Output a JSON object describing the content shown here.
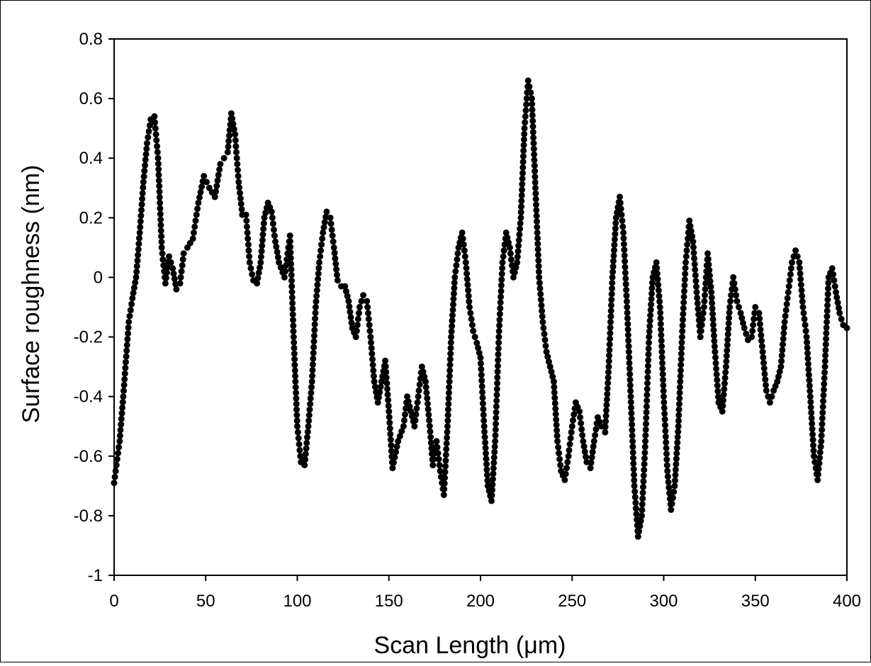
{
  "chart_data": {
    "type": "scatter",
    "title": "",
    "xlabel": "Scan Length (μm)",
    "ylabel": "Surface roughness (nm)",
    "xlim": [
      0,
      400
    ],
    "ylim": [
      -1,
      0.8
    ],
    "xticks": [
      "0",
      "50",
      "100",
      "150",
      "200",
      "250",
      "300",
      "350",
      "400"
    ],
    "yticks": [
      "0.8",
      "0.6",
      "0.4",
      "0.2",
      "0",
      "-0.2",
      "-0.4",
      "-0.6",
      "-0.8",
      "-1"
    ],
    "grid": false,
    "legend": "none",
    "marker_color": "#000000",
    "profile": [
      [
        0,
        -0.69
      ],
      [
        3,
        -0.55
      ],
      [
        5,
        -0.4
      ],
      [
        8,
        -0.15
      ],
      [
        10,
        -0.07
      ],
      [
        12,
        0.0
      ],
      [
        14,
        0.15
      ],
      [
        16,
        0.32
      ],
      [
        18,
        0.45
      ],
      [
        20,
        0.53
      ],
      [
        22,
        0.54
      ],
      [
        24,
        0.4
      ],
      [
        26,
        0.1
      ],
      [
        28,
        -0.02
      ],
      [
        30,
        0.07
      ],
      [
        32,
        0.03
      ],
      [
        34,
        -0.04
      ],
      [
        36,
        -0.02
      ],
      [
        38,
        0.08
      ],
      [
        40,
        0.1
      ],
      [
        43,
        0.13
      ],
      [
        46,
        0.25
      ],
      [
        49,
        0.34
      ],
      [
        52,
        0.3
      ],
      [
        55,
        0.27
      ],
      [
        58,
        0.38
      ],
      [
        62,
        0.42
      ],
      [
        64,
        0.55
      ],
      [
        66,
        0.48
      ],
      [
        68,
        0.32
      ],
      [
        70,
        0.21
      ],
      [
        72,
        0.21
      ],
      [
        74,
        0.05
      ],
      [
        76,
        -0.01
      ],
      [
        78,
        -0.02
      ],
      [
        80,
        0.05
      ],
      [
        82,
        0.2
      ],
      [
        84,
        0.25
      ],
      [
        86,
        0.22
      ],
      [
        88,
        0.12
      ],
      [
        90,
        0.05
      ],
      [
        93,
        0.0
      ],
      [
        96,
        0.14
      ],
      [
        98,
        -0.2
      ],
      [
        100,
        -0.5
      ],
      [
        102,
        -0.62
      ],
      [
        104,
        -0.63
      ],
      [
        106,
        -0.5
      ],
      [
        108,
        -0.35
      ],
      [
        110,
        -0.1
      ],
      [
        112,
        0.05
      ],
      [
        114,
        0.15
      ],
      [
        116,
        0.22
      ],
      [
        118,
        0.2
      ],
      [
        120,
        0.1
      ],
      [
        122,
        -0.01
      ],
      [
        124,
        -0.03
      ],
      [
        126,
        -0.03
      ],
      [
        128,
        -0.08
      ],
      [
        130,
        -0.17
      ],
      [
        132,
        -0.2
      ],
      [
        134,
        -0.1
      ],
      [
        136,
        -0.06
      ],
      [
        138,
        -0.08
      ],
      [
        140,
        -0.2
      ],
      [
        142,
        -0.35
      ],
      [
        144,
        -0.42
      ],
      [
        146,
        -0.35
      ],
      [
        148,
        -0.28
      ],
      [
        150,
        -0.45
      ],
      [
        152,
        -0.64
      ],
      [
        155,
        -0.55
      ],
      [
        158,
        -0.5
      ],
      [
        160,
        -0.4
      ],
      [
        162,
        -0.45
      ],
      [
        164,
        -0.5
      ],
      [
        166,
        -0.4
      ],
      [
        168,
        -0.3
      ],
      [
        170,
        -0.35
      ],
      [
        172,
        -0.48
      ],
      [
        174,
        -0.63
      ],
      [
        176,
        -0.55
      ],
      [
        178,
        -0.65
      ],
      [
        180,
        -0.73
      ],
      [
        182,
        -0.5
      ],
      [
        184,
        -0.2
      ],
      [
        186,
        0.0
      ],
      [
        188,
        0.1
      ],
      [
        190,
        0.15
      ],
      [
        192,
        0.05
      ],
      [
        194,
        -0.1
      ],
      [
        196,
        -0.18
      ],
      [
        198,
        -0.22
      ],
      [
        200,
        -0.27
      ],
      [
        202,
        -0.5
      ],
      [
        204,
        -0.7
      ],
      [
        206,
        -0.75
      ],
      [
        208,
        -0.55
      ],
      [
        210,
        -0.2
      ],
      [
        212,
        0.05
      ],
      [
        214,
        0.15
      ],
      [
        216,
        0.1
      ],
      [
        218,
        0.0
      ],
      [
        220,
        0.05
      ],
      [
        222,
        0.2
      ],
      [
        224,
        0.5
      ],
      [
        226,
        0.66
      ],
      [
        228,
        0.6
      ],
      [
        230,
        0.3
      ],
      [
        232,
        0.0
      ],
      [
        234,
        -0.15
      ],
      [
        236,
        -0.25
      ],
      [
        238,
        -0.3
      ],
      [
        240,
        -0.35
      ],
      [
        242,
        -0.55
      ],
      [
        244,
        -0.65
      ],
      [
        246,
        -0.68
      ],
      [
        248,
        -0.6
      ],
      [
        250,
        -0.5
      ],
      [
        252,
        -0.42
      ],
      [
        254,
        -0.45
      ],
      [
        256,
        -0.55
      ],
      [
        258,
        -0.62
      ],
      [
        260,
        -0.64
      ],
      [
        262,
        -0.55
      ],
      [
        264,
        -0.47
      ],
      [
        266,
        -0.5
      ],
      [
        268,
        -0.52
      ],
      [
        270,
        -0.3
      ],
      [
        272,
        0.0
      ],
      [
        274,
        0.2
      ],
      [
        276,
        0.27
      ],
      [
        278,
        0.15
      ],
      [
        280,
        -0.1
      ],
      [
        282,
        -0.4
      ],
      [
        284,
        -0.7
      ],
      [
        286,
        -0.87
      ],
      [
        288,
        -0.8
      ],
      [
        290,
        -0.55
      ],
      [
        292,
        -0.2
      ],
      [
        294,
        0.0
      ],
      [
        296,
        0.05
      ],
      [
        298,
        -0.1
      ],
      [
        300,
        -0.4
      ],
      [
        302,
        -0.65
      ],
      [
        304,
        -0.78
      ],
      [
        306,
        -0.7
      ],
      [
        308,
        -0.5
      ],
      [
        310,
        -0.2
      ],
      [
        312,
        0.05
      ],
      [
        314,
        0.19
      ],
      [
        316,
        0.12
      ],
      [
        318,
        -0.05
      ],
      [
        320,
        -0.2
      ],
      [
        322,
        -0.1
      ],
      [
        324,
        0.08
      ],
      [
        326,
        -0.05
      ],
      [
        328,
        -0.25
      ],
      [
        330,
        -0.42
      ],
      [
        332,
        -0.45
      ],
      [
        334,
        -0.3
      ],
      [
        336,
        -0.1
      ],
      [
        338,
        0.0
      ],
      [
        340,
        -0.08
      ],
      [
        342,
        -0.12
      ],
      [
        344,
        -0.17
      ],
      [
        346,
        -0.21
      ],
      [
        348,
        -0.2
      ],
      [
        350,
        -0.1
      ],
      [
        352,
        -0.12
      ],
      [
        354,
        -0.25
      ],
      [
        356,
        -0.38
      ],
      [
        358,
        -0.42
      ],
      [
        360,
        -0.38
      ],
      [
        362,
        -0.35
      ],
      [
        364,
        -0.3
      ],
      [
        366,
        -0.15
      ],
      [
        368,
        -0.05
      ],
      [
        370,
        0.05
      ],
      [
        372,
        0.09
      ],
      [
        374,
        0.05
      ],
      [
        376,
        -0.1
      ],
      [
        378,
        -0.2
      ],
      [
        380,
        -0.4
      ],
      [
        382,
        -0.6
      ],
      [
        384,
        -0.68
      ],
      [
        386,
        -0.55
      ],
      [
        388,
        -0.3
      ],
      [
        390,
        0.0
      ],
      [
        392,
        0.03
      ],
      [
        394,
        -0.05
      ],
      [
        396,
        -0.12
      ],
      [
        398,
        -0.16
      ],
      [
        400,
        -0.17
      ]
    ]
  }
}
